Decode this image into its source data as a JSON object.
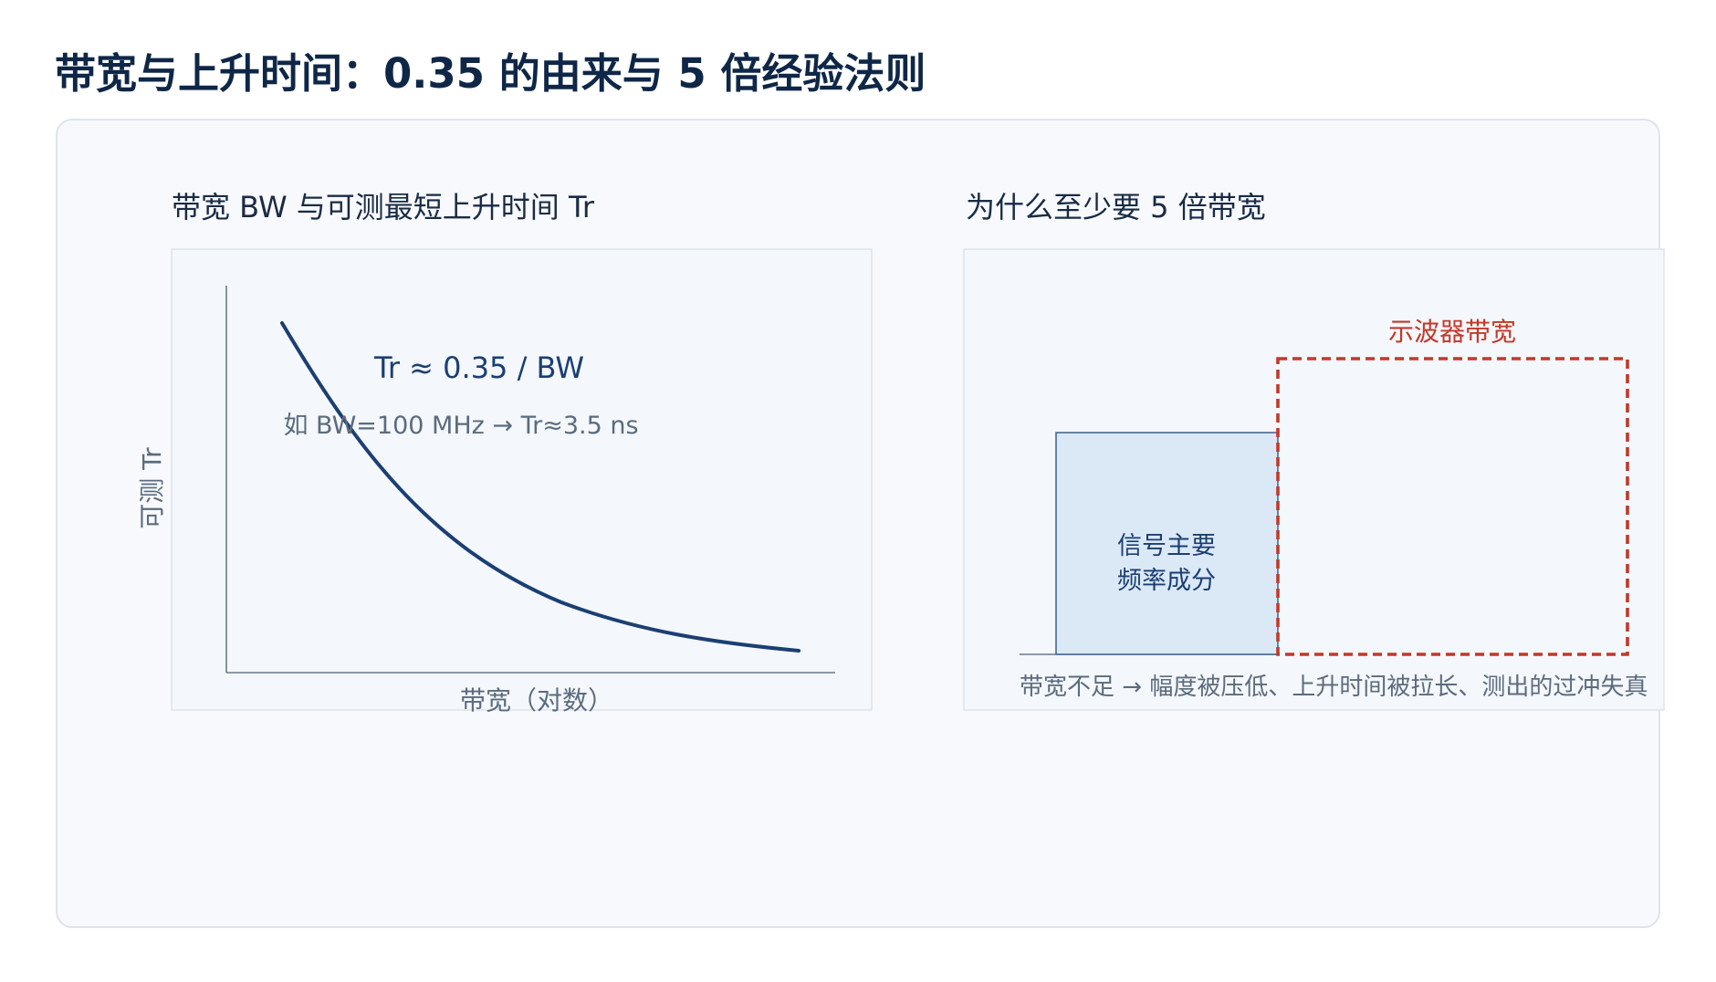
{
  "page": {
    "title": "带宽与上升时间：0.35 的由来与 5 倍经验法则"
  },
  "left_chart": {
    "title": "带宽 BW 与可测最短上升时间 Tr",
    "xlabel": "带宽（对数）",
    "ylabel": "可测 Tr",
    "formula": "Tr ≈ 0.35 / BW",
    "example": "如 BW=100 MHz → Tr≈3.5 ns",
    "curve_color": "#1b3f72"
  },
  "right_chart": {
    "title": "为什么至少要 5 倍带宽",
    "signal_label_line1": "信号主要",
    "signal_label_line2": "频率成分",
    "scope_label": "示波器带宽",
    "caption": "带宽不足 → 幅度被压低、上升时间被拉长、测出的过冲失真",
    "signal_fill": "#dbe8f6",
    "scope_color": "#c0392b"
  },
  "colors": {
    "title": "#0f2747",
    "panel_bg": "#f7f9fc",
    "axis": "#6b7a8c",
    "muted_text": "#5b6b7d",
    "dark_text": "#1a2b45"
  }
}
